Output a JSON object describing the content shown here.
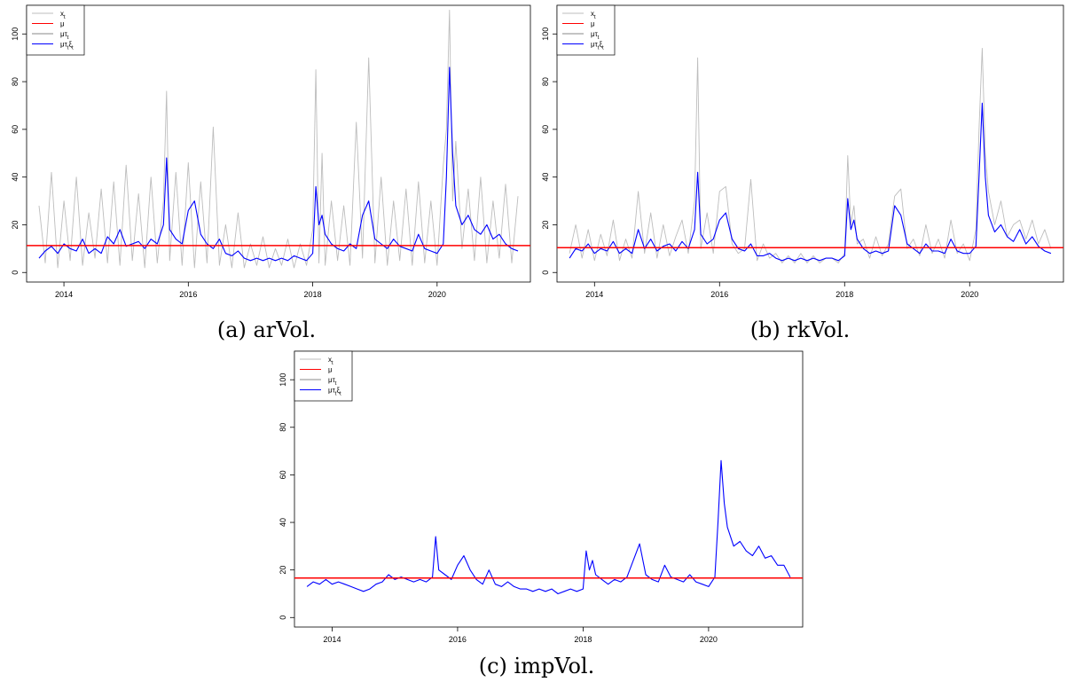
{
  "chart_data": [
    {
      "type": "line",
      "caption": "(a) arVol.",
      "xlim": [
        2013.4,
        2021.5
      ],
      "ylim": [
        -4,
        112
      ],
      "x_ticks": [
        2014,
        2016,
        2018,
        2020
      ],
      "y_ticks": [
        0,
        20,
        40,
        60,
        80,
        100
      ],
      "legend": {
        "placement": "top-left",
        "entries": [
          "x_t",
          "μ",
          "μτ_t",
          "μτ_tξ_t"
        ]
      },
      "colors": {
        "x_t": "#bdbdbd",
        "mu": "#ff0000",
        "mu_tau": "#888888",
        "mu_tau_xi": "#0000ff"
      },
      "mu": 11.3,
      "series": [
        {
          "name": "μτ_tξ_t",
          "x": [
            2013.6,
            2013.7,
            2013.8,
            2013.9,
            2014.0,
            2014.1,
            2014.2,
            2014.3,
            2014.4,
            2014.5,
            2014.6,
            2014.7,
            2014.8,
            2014.9,
            2015.0,
            2015.1,
            2015.2,
            2015.3,
            2015.4,
            2015.5,
            2015.6,
            2015.65,
            2015.7,
            2015.8,
            2015.9,
            2016.0,
            2016.1,
            2016.2,
            2016.3,
            2016.4,
            2016.5,
            2016.6,
            2016.7,
            2016.8,
            2016.9,
            2017.0,
            2017.1,
            2017.2,
            2017.3,
            2017.4,
            2017.5,
            2017.6,
            2017.7,
            2017.8,
            2017.9,
            2018.0,
            2018.05,
            2018.1,
            2018.15,
            2018.2,
            2018.3,
            2018.4,
            2018.5,
            2018.6,
            2018.7,
            2018.8,
            2018.9,
            2019.0,
            2019.1,
            2019.2,
            2019.3,
            2019.4,
            2019.5,
            2019.6,
            2019.7,
            2019.8,
            2019.9,
            2020.0,
            2020.1,
            2020.15,
            2020.2,
            2020.25,
            2020.3,
            2020.4,
            2020.5,
            2020.6,
            2020.7,
            2020.8,
            2020.9,
            2021.0,
            2021.1,
            2021.2,
            2021.3
          ],
          "y": [
            6,
            9,
            11,
            8,
            12,
            10,
            9,
            14,
            8,
            10,
            8,
            15,
            12,
            18,
            11,
            12,
            13,
            10,
            14,
            12,
            20,
            48,
            18,
            14,
            12,
            26,
            30,
            16,
            12,
            10,
            14,
            8,
            7,
            9,
            6,
            5,
            6,
            5,
            6,
            5,
            6,
            5,
            7,
            6,
            5,
            8,
            36,
            20,
            24,
            16,
            12,
            10,
            9,
            12,
            10,
            24,
            30,
            14,
            12,
            10,
            14,
            11,
            10,
            9,
            16,
            10,
            9,
            8,
            12,
            40,
            86,
            50,
            28,
            20,
            24,
            18,
            16,
            20,
            14,
            16,
            12,
            10,
            9
          ]
        },
        {
          "name": "x_t",
          "x": [
            2013.6,
            2013.7,
            2013.8,
            2013.9,
            2014.0,
            2014.1,
            2014.2,
            2014.3,
            2014.4,
            2014.5,
            2014.6,
            2014.7,
            2014.8,
            2014.9,
            2015.0,
            2015.1,
            2015.2,
            2015.3,
            2015.4,
            2015.5,
            2015.6,
            2015.65,
            2015.7,
            2015.8,
            2015.9,
            2016.0,
            2016.1,
            2016.2,
            2016.3,
            2016.4,
            2016.5,
            2016.6,
            2016.7,
            2016.8,
            2016.9,
            2017.0,
            2017.1,
            2017.2,
            2017.3,
            2017.4,
            2017.5,
            2017.6,
            2017.7,
            2017.8,
            2017.9,
            2018.0,
            2018.05,
            2018.1,
            2018.15,
            2018.2,
            2018.3,
            2018.4,
            2018.5,
            2018.6,
            2018.7,
            2018.8,
            2018.9,
            2019.0,
            2019.1,
            2019.2,
            2019.3,
            2019.4,
            2019.5,
            2019.6,
            2019.7,
            2019.8,
            2019.9,
            2020.0,
            2020.1,
            2020.15,
            2020.2,
            2020.25,
            2020.3,
            2020.4,
            2020.5,
            2020.6,
            2020.7,
            2020.8,
            2020.9,
            2021.0,
            2021.1,
            2021.2,
            2021.3
          ],
          "y": [
            28,
            4,
            42,
            2,
            30,
            5,
            40,
            3,
            25,
            6,
            35,
            4,
            38,
            3,
            45,
            5,
            33,
            2,
            40,
            4,
            30,
            76,
            5,
            42,
            3,
            46,
            2,
            38,
            4,
            61,
            3,
            20,
            2,
            25,
            2,
            12,
            3,
            15,
            2,
            10,
            3,
            14,
            2,
            12,
            3,
            18,
            85,
            4,
            50,
            3,
            30,
            5,
            28,
            3,
            63,
            6,
            90,
            4,
            40,
            3,
            30,
            5,
            35,
            3,
            38,
            4,
            30,
            3,
            45,
            60,
            110,
            30,
            55,
            10,
            35,
            5,
            40,
            4,
            30,
            6,
            37,
            4,
            32
          ]
        }
      ]
    },
    {
      "type": "line",
      "caption": "(b) rkVol.",
      "xlim": [
        2013.4,
        2021.5
      ],
      "ylim": [
        -4,
        112
      ],
      "x_ticks": [
        2014,
        2016,
        2018,
        2020
      ],
      "y_ticks": [
        0,
        20,
        40,
        60,
        80,
        100
      ],
      "legend": {
        "placement": "top-left",
        "entries": [
          "x_t",
          "μ",
          "μτ_t",
          "μτ_tξ_t"
        ]
      },
      "colors": {
        "x_t": "#bdbdbd",
        "mu": "#ff0000",
        "mu_tau": "#888888",
        "mu_tau_xi": "#0000ff"
      },
      "mu": 10.4,
      "series": [
        {
          "name": "μτ_tξ_t",
          "x": [
            2013.6,
            2013.7,
            2013.8,
            2013.9,
            2014.0,
            2014.1,
            2014.2,
            2014.3,
            2014.4,
            2014.5,
            2014.6,
            2014.7,
            2014.8,
            2014.9,
            2015.0,
            2015.1,
            2015.2,
            2015.3,
            2015.4,
            2015.5,
            2015.6,
            2015.65,
            2015.7,
            2015.8,
            2015.9,
            2016.0,
            2016.1,
            2016.2,
            2016.3,
            2016.4,
            2016.5,
            2016.6,
            2016.7,
            2016.8,
            2016.9,
            2017.0,
            2017.1,
            2017.2,
            2017.3,
            2017.4,
            2017.5,
            2017.6,
            2017.7,
            2017.8,
            2017.9,
            2018.0,
            2018.05,
            2018.1,
            2018.15,
            2018.2,
            2018.3,
            2018.4,
            2018.5,
            2018.6,
            2018.7,
            2018.8,
            2018.9,
            2019.0,
            2019.1,
            2019.2,
            2019.3,
            2019.4,
            2019.5,
            2019.6,
            2019.7,
            2019.8,
            2019.9,
            2020.0,
            2020.1,
            2020.15,
            2020.2,
            2020.25,
            2020.3,
            2020.4,
            2020.5,
            2020.6,
            2020.7,
            2020.8,
            2020.9,
            2021.0,
            2021.1,
            2021.2,
            2021.3
          ],
          "y": [
            6,
            10,
            9,
            12,
            8,
            10,
            9,
            13,
            8,
            10,
            8,
            18,
            10,
            14,
            9,
            11,
            12,
            9,
            13,
            10,
            18,
            42,
            16,
            12,
            14,
            22,
            25,
            14,
            10,
            9,
            12,
            7,
            7,
            8,
            6,
            5,
            6,
            5,
            6,
            5,
            6,
            5,
            6,
            6,
            5,
            7,
            31,
            18,
            22,
            14,
            10,
            8,
            9,
            8,
            9,
            28,
            24,
            12,
            10,
            8,
            12,
            9,
            9,
            8,
            14,
            9,
            8,
            8,
            11,
            40,
            71,
            40,
            24,
            17,
            20,
            15,
            13,
            18,
            12,
            15,
            11,
            9,
            8
          ]
        },
        {
          "name": "x_t",
          "x": [
            2013.6,
            2013.7,
            2013.8,
            2013.9,
            2014.0,
            2014.1,
            2014.2,
            2014.3,
            2014.4,
            2014.5,
            2014.6,
            2014.7,
            2014.8,
            2014.9,
            2015.0,
            2015.1,
            2015.2,
            2015.3,
            2015.4,
            2015.5,
            2015.6,
            2015.65,
            2015.7,
            2015.8,
            2015.9,
            2016.0,
            2016.1,
            2016.2,
            2016.3,
            2016.4,
            2016.5,
            2016.6,
            2016.7,
            2016.8,
            2016.9,
            2017.0,
            2017.1,
            2017.2,
            2017.3,
            2017.4,
            2017.5,
            2017.6,
            2017.7,
            2017.8,
            2017.9,
            2018.0,
            2018.05,
            2018.1,
            2018.15,
            2018.2,
            2018.3,
            2018.4,
            2018.5,
            2018.6,
            2018.7,
            2018.8,
            2018.9,
            2019.0,
            2019.1,
            2019.2,
            2019.3,
            2019.4,
            2019.5,
            2019.6,
            2019.7,
            2019.8,
            2019.9,
            2020.0,
            2020.1,
            2020.15,
            2020.2,
            2020.25,
            2020.3,
            2020.4,
            2020.5,
            2020.6,
            2020.7,
            2020.8,
            2020.9,
            2021.0,
            2021.1,
            2021.2,
            2021.3
          ],
          "y": [
            8,
            20,
            6,
            18,
            5,
            16,
            7,
            22,
            5,
            14,
            6,
            34,
            8,
            25,
            6,
            20,
            7,
            15,
            22,
            8,
            30,
            90,
            10,
            25,
            8,
            34,
            36,
            12,
            8,
            10,
            39,
            5,
            12,
            6,
            8,
            4,
            7,
            4,
            8,
            4,
            7,
            4,
            6,
            6,
            4,
            8,
            49,
            20,
            28,
            12,
            14,
            6,
            15,
            7,
            12,
            32,
            35,
            10,
            14,
            7,
            20,
            8,
            14,
            6,
            22,
            8,
            12,
            5,
            18,
            60,
            94,
            50,
            34,
            20,
            30,
            15,
            20,
            22,
            14,
            22,
            12,
            18,
            10
          ]
        }
      ]
    },
    {
      "type": "line",
      "caption": "(c) impVol.",
      "xlim": [
        2013.4,
        2021.5
      ],
      "ylim": [
        -4,
        112
      ],
      "x_ticks": [
        2014,
        2016,
        2018,
        2020
      ],
      "y_ticks": [
        0,
        20,
        40,
        60,
        80,
        100
      ],
      "legend": {
        "placement": "top-left",
        "entries": [
          "x_t",
          "μ",
          "μτ_t",
          "μτ_tξ_t"
        ]
      },
      "colors": {
        "x_t": "#bdbdbd",
        "mu": "#ff0000",
        "mu_tau": "#888888",
        "mu_tau_xi": "#0000ff"
      },
      "mu": 16.6,
      "series": [
        {
          "name": "μτ_tξ_t",
          "x": [
            2013.6,
            2013.7,
            2013.8,
            2013.9,
            2014.0,
            2014.1,
            2014.2,
            2014.3,
            2014.4,
            2014.5,
            2014.6,
            2014.7,
            2014.8,
            2014.9,
            2015.0,
            2015.1,
            2015.2,
            2015.3,
            2015.4,
            2015.5,
            2015.6,
            2015.65,
            2015.7,
            2015.8,
            2015.9,
            2016.0,
            2016.1,
            2016.2,
            2016.3,
            2016.4,
            2016.5,
            2016.6,
            2016.7,
            2016.8,
            2016.9,
            2017.0,
            2017.1,
            2017.2,
            2017.3,
            2017.4,
            2017.5,
            2017.6,
            2017.7,
            2017.8,
            2017.9,
            2018.0,
            2018.05,
            2018.1,
            2018.15,
            2018.2,
            2018.3,
            2018.4,
            2018.5,
            2018.6,
            2018.7,
            2018.8,
            2018.9,
            2019.0,
            2019.1,
            2019.2,
            2019.3,
            2019.4,
            2019.5,
            2019.6,
            2019.7,
            2019.8,
            2019.9,
            2020.0,
            2020.1,
            2020.15,
            2020.2,
            2020.25,
            2020.3,
            2020.4,
            2020.5,
            2020.6,
            2020.7,
            2020.8,
            2020.9,
            2021.0,
            2021.1,
            2021.2,
            2021.3
          ],
          "y": [
            13,
            15,
            14,
            16,
            14,
            15,
            14,
            13,
            12,
            11,
            12,
            14,
            15,
            18,
            16,
            17,
            16,
            15,
            16,
            15,
            17,
            34,
            20,
            18,
            16,
            22,
            26,
            20,
            16,
            14,
            20,
            14,
            13,
            15,
            13,
            12,
            12,
            11,
            12,
            11,
            12,
            10,
            11,
            12,
            11,
            12,
            28,
            20,
            24,
            18,
            16,
            14,
            16,
            15,
            17,
            24,
            31,
            18,
            16,
            15,
            22,
            17,
            16,
            15,
            18,
            15,
            14,
            13,
            17,
            40,
            66,
            48,
            38,
            30,
            32,
            28,
            26,
            30,
            25,
            26,
            22,
            22,
            17
          ]
        }
      ]
    }
  ]
}
